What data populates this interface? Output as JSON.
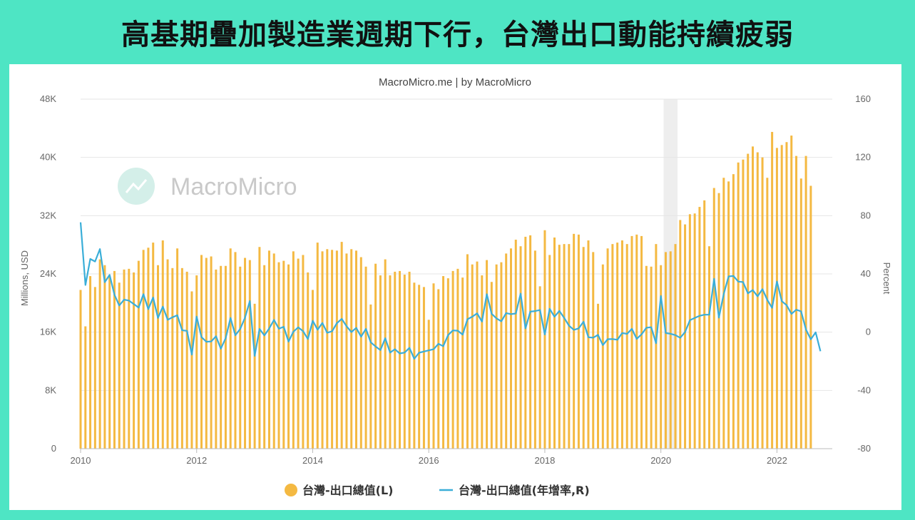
{
  "headline": "高基期疊加製造業週期下行，台灣出口動能持續疲弱",
  "subtitle": "MacroMicro.me | by MacroMicro",
  "watermark": "MacroMicro",
  "colors": {
    "background": "#4ee5c4",
    "bars": "#f4b942",
    "line": "#3aaed8",
    "recession": "#eeeeee",
    "grid": "#e6e6e6"
  },
  "chart_data": {
    "type": "bar+line",
    "source": "MacroMicro.me | by MacroMicro",
    "x_start": "2010-01",
    "x_ticks": [
      "2010",
      "2012",
      "2014",
      "2016",
      "2018",
      "2020",
      "2022"
    ],
    "ylabel_left": "Millions, USD",
    "ylabel_right": "Percent",
    "y_left_ticks": [
      "0",
      "8K",
      "16K",
      "24K",
      "32K",
      "40K",
      "48K"
    ],
    "y_right_ticks": [
      "-80",
      "-40",
      "0",
      "40",
      "80",
      "120",
      "160"
    ],
    "y_left_range": [
      0,
      48000
    ],
    "y_right_range": [
      -80,
      160
    ],
    "shaded_period": [
      "2020-02",
      "2020-04"
    ],
    "grid": true,
    "legend_position": "bottom",
    "series": [
      {
        "name": "台灣-出口總值(L)",
        "type": "bar",
        "axis": "left",
        "values": [
          21800,
          16800,
          23700,
          22200,
          26000,
          25200,
          23700,
          24400,
          22800,
          24600,
          24700,
          24200,
          25800,
          27300,
          27600,
          28300,
          25200,
          28600,
          26000,
          24800,
          27500,
          24800,
          24300,
          21600,
          23800,
          26600,
          26200,
          26400,
          24600,
          25100,
          25100,
          27500,
          27000,
          25000,
          26200,
          25900,
          19900,
          27700,
          25200,
          27200,
          26800,
          25600,
          25800,
          25300,
          27100,
          26100,
          26600,
          24200,
          21800,
          28300,
          27100,
          27400,
          27300,
          27200,
          28400,
          26800,
          27400,
          27200,
          26300,
          25000,
          19800,
          25400,
          23800,
          26000,
          23800,
          24300,
          24400,
          23900,
          24300,
          22800,
          22500,
          22200,
          17700,
          22700,
          21900,
          23700,
          23400,
          24400,
          24700,
          23500,
          26700,
          25300,
          25700,
          23800,
          25900,
          22900,
          25300,
          25600,
          26800,
          27500,
          28700,
          27800,
          29100,
          29300,
          27200,
          22300,
          30000,
          26600,
          29000,
          28000,
          28100,
          28100,
          29500,
          29400,
          27700,
          28600,
          27000,
          19900,
          25300,
          27500,
          28100,
          28300,
          28600,
          28100,
          29200,
          29400,
          29200,
          25100,
          25000,
          28100,
          25200,
          27000,
          27100,
          28100,
          31400,
          30800,
          32200,
          32300,
          33200,
          34100,
          27800,
          35800,
          35100,
          37200,
          36700,
          37700,
          39300,
          39700,
          40500,
          41500,
          40700,
          40000,
          37200,
          43500,
          41300,
          41700,
          42100,
          43000,
          40200,
          37100,
          40200,
          36100
        ]
      },
      {
        "name": "台灣-出口總值(年增率,R)",
        "type": "line",
        "axis": "right",
        "values": [
          75.4,
          32.4,
          50.3,
          48.5,
          57.1,
          34.3,
          39.3,
          25.7,
          18.3,
          22.3,
          21.7,
          19.3,
          16.9,
          26.1,
          15.8,
          23.8,
          9.8,
          17.5,
          8.5,
          10.2,
          11.6,
          1.3,
          0.9,
          -15.4,
          10.7,
          -3.4,
          -6.6,
          -6.4,
          -2.8,
          -11.4,
          -4.2,
          9.8,
          -2.1,
          2.2,
          9.9,
          21.4,
          -16.3,
          2.2,
          -2.2,
          2.5,
          8.4,
          2.4,
          3.7,
          -6.5,
          0.3,
          3.3,
          0.7,
          -4.7,
          7.8,
          1.7,
          6.3,
          -0.4,
          0.6,
          6.2,
          9.1,
          4.1,
          0.1,
          2.9,
          -3.1,
          2.3,
          -6.9,
          -9.8,
          -12.3,
          -4.2,
          -14.0,
          -11.7,
          -14.6,
          -14.0,
          -10.8,
          -18.3,
          -14.1,
          -13.3,
          -12.5,
          -11.7,
          -8.0,
          -9.6,
          -2.0,
          1.2,
          1.0,
          -1.7,
          8.9,
          10.6,
          12.9,
          7.3,
          26.1,
          12.6,
          9.5,
          7.5,
          13.1,
          12.4,
          12.8,
          26.5,
          2.6,
          14.1,
          14.5,
          15.2,
          -1.6,
          16.0,
          10.6,
          14.6,
          9.8,
          4.5,
          1.6,
          2.6,
          7.2,
          -3.5,
          -3.8,
          -1.9,
          -8.9,
          -4.8,
          -4.7,
          -5.2,
          -0.6,
          -1.2,
          2.3,
          -4.6,
          -1.5,
          3.0,
          3.4,
          -7.6,
          24.8,
          -0.6,
          -1.1,
          -2.0,
          -3.9,
          0.1,
          8.2,
          9.8,
          11.2,
          12.0,
          12.0,
          36.6,
          10.0,
          26.2,
          38.3,
          38.6,
          34.7,
          34.4,
          26.7,
          28.9,
          24.6,
          29.5,
          22.1,
          16.7,
          34.8,
          21.3,
          18.5,
          12.5,
          15.4,
          14.3,
          1.8,
          -4.9,
          -0.1,
          -13.1
        ]
      }
    ]
  },
  "legend": {
    "bar_label": "台灣-出口總值(L)",
    "line_label": "台灣-出口總值(年增率,R)"
  }
}
